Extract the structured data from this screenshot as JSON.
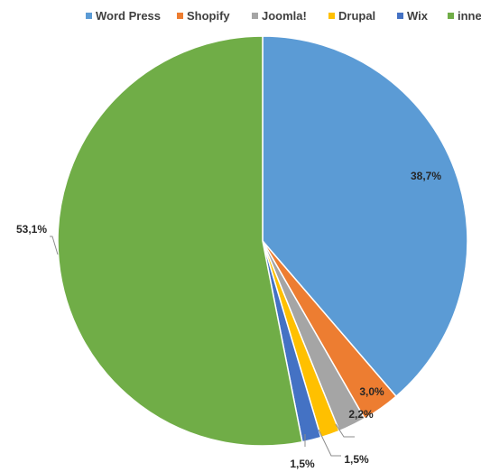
{
  "chart_data": {
    "type": "pie",
    "title": "",
    "legend_position": "top",
    "start": "12 o'clock",
    "direction": "clockwise",
    "slices": [
      {
        "name": "Word Press",
        "value": 38.7,
        "label": "38,7%",
        "color": "#5b9bd5",
        "label_placement": "inside"
      },
      {
        "name": "Shopify",
        "value": 3.0,
        "label": "3,0%",
        "color": "#ed7d31",
        "label_placement": "inside"
      },
      {
        "name": "Joomla!",
        "value": 2.2,
        "label": "2,2%",
        "color": "#a5a5a5",
        "label_placement": "outside"
      },
      {
        "name": "Drupal",
        "value": 1.5,
        "label": "1,5%",
        "color": "#ffc000",
        "label_placement": "outside"
      },
      {
        "name": "Wix",
        "value": 1.5,
        "label": "1,5%",
        "color": "#4472c4",
        "label_placement": "outside"
      },
      {
        "name": "inne",
        "value": 53.1,
        "label": "53,1%",
        "color": "#70ad47",
        "label_placement": "outside"
      }
    ]
  }
}
